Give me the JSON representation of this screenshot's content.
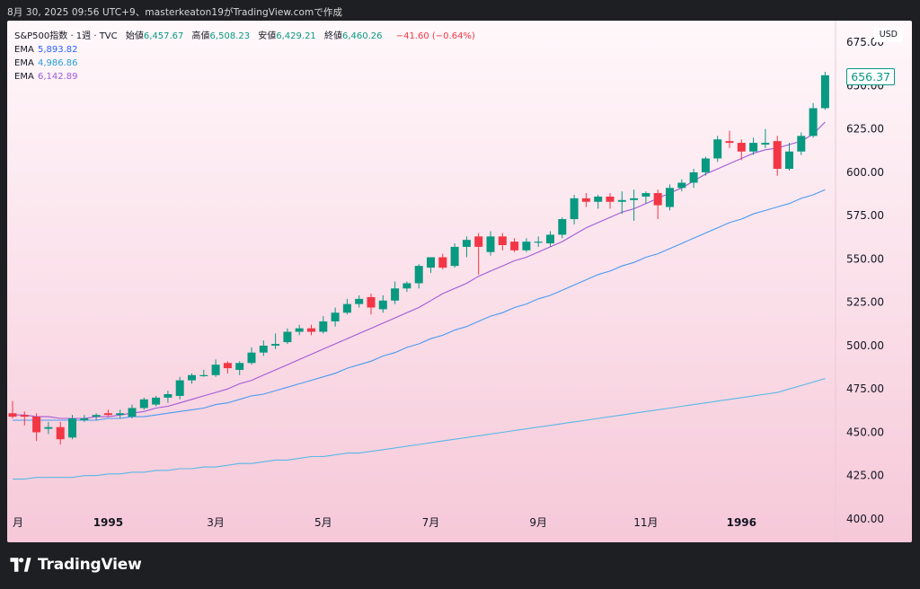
{
  "header": {
    "caption": "8月 30, 2025 09:56 UTC+9、masterkeaton19がTradingView.comで作成"
  },
  "legend": {
    "symbol": "S&P500指数 · 1週 · TVC",
    "open_label": "始値",
    "open_value": "6,457.67",
    "high_label": "高値",
    "high_value": "6,508.23",
    "low_label": "安値",
    "low_value": "6,429.21",
    "close_label": "終値",
    "close_value": "6,460.26",
    "change": "−41.60 (−0.64%)",
    "emas": [
      {
        "name": "EMA",
        "value": "5,893.82",
        "color": "#2962ff"
      },
      {
        "name": "EMA",
        "value": "4,986.86",
        "color": "#26a0d9"
      },
      {
        "name": "EMA",
        "value": "6,142.89",
        "color": "#9c5bd8"
      }
    ]
  },
  "currency": "USD",
  "last_price": "656.37",
  "footer": {
    "brand": "TradingView"
  },
  "colors": {
    "up": "#089981",
    "down": "#f23645",
    "ema_fast": "#a05ad6",
    "ema_mid": "#4a9af0",
    "ema_slow": "#5ab8e6"
  },
  "chart_data": {
    "type": "candlestick",
    "ylim": [
      400,
      687.5
    ],
    "y_ticks": [
      400,
      425,
      450,
      475,
      500,
      525,
      550,
      575,
      600,
      625,
      650,
      675
    ],
    "y_tick_labels": [
      "400.00",
      "425.00",
      "450.00",
      "475.00",
      "500.00",
      "525.00",
      "550.00",
      "575.00",
      "600.00",
      "625.00",
      "650.00",
      "675.00"
    ],
    "x_labels": [
      {
        "i": 0,
        "text": "月",
        "bold": false
      },
      {
        "i": 8,
        "text": "1995",
        "bold": true
      },
      {
        "i": 17,
        "text": "3月",
        "bold": false
      },
      {
        "i": 26,
        "text": "5月",
        "bold": false
      },
      {
        "i": 35,
        "text": "7月",
        "bold": false
      },
      {
        "i": 44,
        "text": "9月",
        "bold": false
      },
      {
        "i": 53,
        "text": "11月",
        "bold": false
      },
      {
        "i": 61,
        "text": "1996",
        "bold": true
      }
    ],
    "candles": [
      [
        461,
        468,
        458,
        459
      ],
      [
        460,
        462,
        454,
        459
      ],
      [
        459,
        461,
        445,
        450
      ],
      [
        452,
        456,
        449,
        453
      ],
      [
        453,
        456,
        443,
        446
      ],
      [
        447,
        460,
        446,
        458
      ],
      [
        457,
        460,
        456,
        458
      ],
      [
        459,
        461,
        457,
        460
      ],
      [
        461,
        463,
        459,
        460
      ],
      [
        460,
        463,
        458,
        461
      ],
      [
        459,
        466,
        458,
        464
      ],
      [
        464,
        470,
        463,
        469
      ],
      [
        466,
        471,
        465,
        470
      ],
      [
        470,
        474,
        467,
        472
      ],
      [
        471,
        482,
        469,
        480
      ],
      [
        480,
        484,
        478,
        483
      ],
      [
        483,
        486,
        482,
        483
      ],
      [
        483,
        492,
        482,
        489
      ],
      [
        490,
        491,
        484,
        487
      ],
      [
        486,
        491,
        483,
        490
      ],
      [
        490,
        499,
        489,
        496
      ],
      [
        496,
        503,
        494,
        500
      ],
      [
        500,
        507,
        498,
        501
      ],
      [
        502,
        510,
        501,
        508
      ],
      [
        508,
        512,
        506,
        510
      ],
      [
        510,
        512,
        506,
        508
      ],
      [
        508,
        517,
        507,
        514
      ],
      [
        514,
        522,
        511,
        519
      ],
      [
        519,
        527,
        518,
        524
      ],
      [
        524,
        529,
        522,
        527
      ],
      [
        528,
        530,
        518,
        522
      ],
      [
        521,
        529,
        519,
        526
      ],
      [
        526,
        537,
        524,
        533
      ],
      [
        533,
        537,
        531,
        536
      ],
      [
        536,
        547,
        533,
        546
      ],
      [
        545,
        551,
        542,
        551
      ],
      [
        551,
        553,
        544,
        545
      ],
      [
        546,
        559,
        545,
        557
      ],
      [
        557,
        563,
        551,
        561
      ],
      [
        563,
        565,
        541,
        557
      ],
      [
        554,
        566,
        552,
        563
      ],
      [
        563,
        565,
        555,
        558
      ],
      [
        560,
        562,
        554,
        555
      ],
      [
        555,
        562,
        554,
        560
      ],
      [
        560,
        563,
        557,
        560
      ],
      [
        559,
        566,
        557,
        564
      ],
      [
        564,
        574,
        562,
        573
      ],
      [
        573,
        587,
        570,
        585
      ],
      [
        585,
        588,
        580,
        583
      ],
      [
        583,
        587,
        579,
        586
      ],
      [
        586,
        588,
        579,
        583
      ],
      [
        583,
        589,
        576,
        584
      ],
      [
        584,
        590,
        572,
        585
      ],
      [
        586,
        589,
        582,
        588
      ],
      [
        588,
        590,
        573,
        581
      ],
      [
        580,
        593,
        578,
        591
      ],
      [
        591,
        596,
        589,
        594
      ],
      [
        594,
        602,
        591,
        600
      ],
      [
        600,
        609,
        598,
        608
      ],
      [
        608,
        621,
        606,
        619
      ],
      [
        618,
        624,
        614,
        617
      ],
      [
        617,
        619,
        607,
        612
      ],
      [
        612,
        620,
        610,
        617
      ],
      [
        616,
        625,
        614,
        617
      ],
      [
        618,
        621,
        598,
        602
      ],
      [
        602,
        617,
        601,
        612
      ],
      [
        612,
        623,
        610,
        621
      ],
      [
        621,
        640,
        620,
        637
      ],
      [
        637,
        658,
        636,
        656
      ]
    ],
    "ema_fast": [
      460,
      460,
      459,
      459,
      458,
      458,
      458,
      459,
      459,
      460,
      461,
      462,
      464,
      465,
      467,
      469,
      471,
      473,
      475,
      478,
      480,
      483,
      486,
      489,
      492,
      495,
      498,
      501,
      504,
      507,
      510,
      513,
      516,
      519,
      522,
      526,
      530,
      533,
      536,
      540,
      543,
      546,
      549,
      551,
      554,
      557,
      560,
      564,
      568,
      571,
      574,
      577,
      579,
      582,
      585,
      588,
      591,
      595,
      599,
      602,
      605,
      608,
      611,
      613,
      614,
      616,
      618,
      622,
      629
    ],
    "ema_mid": [
      457,
      457,
      457,
      457,
      457,
      457,
      457,
      457,
      458,
      458,
      459,
      459,
      460,
      461,
      462,
      463,
      464,
      466,
      467,
      469,
      471,
      472,
      474,
      476,
      478,
      480,
      482,
      484,
      487,
      489,
      491,
      494,
      496,
      499,
      501,
      504,
      506,
      509,
      511,
      514,
      517,
      519,
      522,
      524,
      527,
      529,
      532,
      535,
      538,
      541,
      543,
      546,
      548,
      551,
      553,
      556,
      559,
      562,
      565,
      568,
      571,
      573,
      576,
      578,
      580,
      582,
      585,
      587,
      590
    ],
    "ema_slow": [
      423,
      423,
      424,
      424,
      424,
      424,
      425,
      425,
      426,
      426,
      427,
      427,
      428,
      428,
      429,
      429,
      430,
      430,
      431,
      432,
      432,
      433,
      434,
      434,
      435,
      436,
      436,
      437,
      438,
      438,
      439,
      440,
      441,
      442,
      443,
      444,
      445,
      446,
      447,
      448,
      449,
      450,
      451,
      452,
      453,
      454,
      455,
      456,
      457,
      458,
      459,
      460,
      461,
      462,
      463,
      464,
      465,
      466,
      467,
      468,
      469,
      470,
      471,
      472,
      473,
      475,
      477,
      479,
      481
    ]
  }
}
